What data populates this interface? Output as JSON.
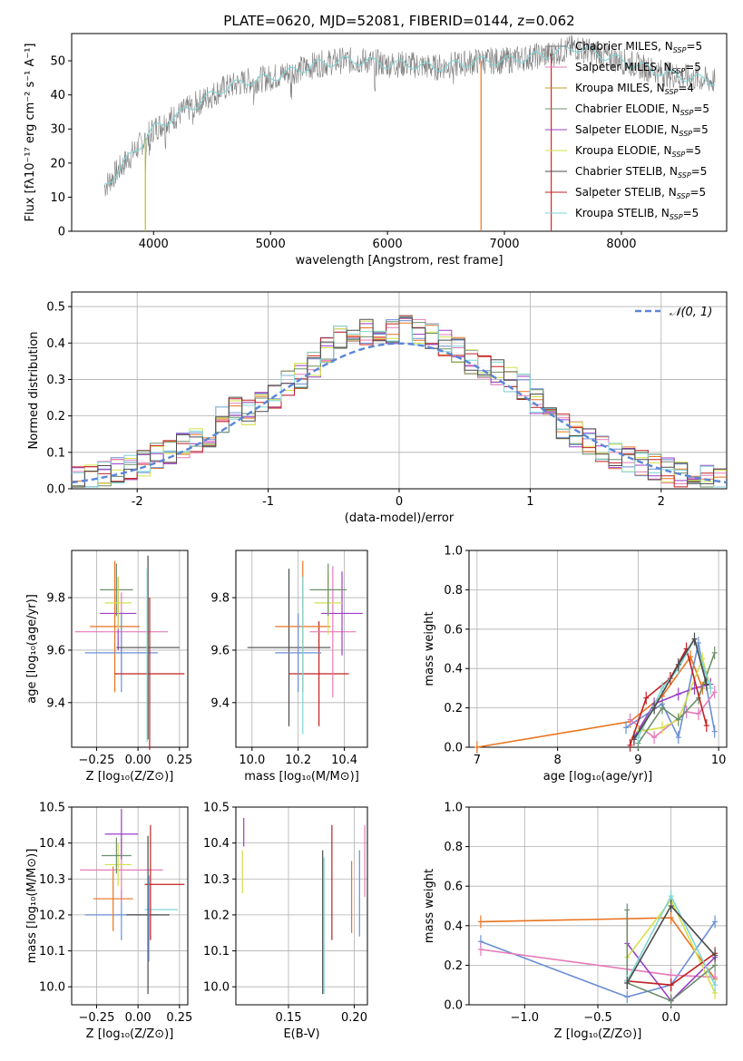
{
  "figure_title": "PLATE=0620, MJD=52081, FIBERID=0144, z=0.062",
  "colors": {
    "chabrier_miles": "#1f1f1f",
    "salpeter_miles": "#e377c2",
    "kroupa_miles": "#bcbd22",
    "chabrier_elodie": "#2ca02c",
    "salpeter_elodie": "#9467bd",
    "kroupa_elodie": "#dbdb8d",
    "chabrier_stelib": "#555555",
    "salpeter_stelib": "#d62728",
    "kroupa_stelib": "#17becf",
    "panel_miles_chab": "#777777",
    "orange": "#e8741f",
    "blue": "#6b8fd6",
    "pink": "#e67ab8",
    "purple": "#9b3fc8",
    "yellowgreen": "#d4e04a",
    "green": "#6c8f6c",
    "red": "#c22020",
    "cyan": "#7fd6d6",
    "dark": "#4a4a4a",
    "grid": "#b0b0b0",
    "normal_curve": "#5b86d6"
  },
  "chart_data": [
    {
      "id": "spectrum",
      "type": "line",
      "xlabel": "wavelength [Angstrom, rest frame]",
      "ylabel": "Flux [fλ10⁻¹⁷ erg cm⁻² s⁻¹ A⁻¹]",
      "xlim": [
        3300,
        8900
      ],
      "ylim": [
        0,
        58
      ],
      "xticks": [
        4000,
        5000,
        6000,
        7000,
        8000
      ],
      "yticks": [
        0,
        10,
        20,
        30,
        40,
        50
      ],
      "grid": false,
      "legend_position": "lower-right",
      "legend": [
        {
          "label": "Chabrier MILES, N",
          "sub": "SSP",
          "tail": "=5"
        },
        {
          "label": "Salpeter MILES, N",
          "sub": "SSP",
          "tail": "=5"
        },
        {
          "label": "Kroupa MILES, N",
          "sub": "SSP",
          "tail": "=4"
        },
        {
          "label": "Chabrier ELODIE, N",
          "sub": "SSP",
          "tail": "=5"
        },
        {
          "label": "Salpeter ELODIE, N",
          "sub": "SSP",
          "tail": "=5"
        },
        {
          "label": "Kroupa ELODIE, N",
          "sub": "SSP",
          "tail": "=5"
        },
        {
          "label": "Chabrier STELIB, N",
          "sub": "SSP",
          "tail": "=5"
        },
        {
          "label": "Salpeter STELIB, N",
          "sub": "SSP",
          "tail": "=5"
        },
        {
          "label": "Kroupa STELIB, N",
          "sub": "SSP",
          "tail": "=5"
        }
      ],
      "continuum": {
        "x": [
          3580,
          3700,
          3900,
          4000,
          4200,
          4400,
          4600,
          4800,
          5000,
          5200,
          5400,
          5600,
          5800,
          6000,
          6200,
          6400,
          6600,
          6800,
          7000,
          7200,
          7400,
          7600,
          7800,
          8000,
          8200,
          8400,
          8600,
          8800
        ],
        "y": [
          13,
          18,
          26,
          30,
          34,
          38,
          42,
          44,
          45,
          47,
          49,
          50,
          50,
          49,
          49,
          48,
          49,
          50,
          50,
          51,
          52,
          54,
          52,
          50,
          48,
          46,
          45,
          44
        ]
      }
    },
    {
      "id": "residuals",
      "type": "histogram",
      "xlabel": "(data-model)/error",
      "ylabel": "Normed distribution",
      "xlim": [
        -2.5,
        2.5
      ],
      "ylim": [
        0,
        0.54
      ],
      "xticks": [
        -2,
        -1,
        0,
        1,
        2
      ],
      "yticks": [
        0.0,
        0.1,
        0.2,
        0.3,
        0.4,
        0.5
      ],
      "grid": true,
      "legend_position": "top-right",
      "legend": [
        {
          "label": "𝒩(0, 1)"
        }
      ],
      "bins": {
        "start": -2.5,
        "width": 0.1,
        "values": [
          0.03,
          0.03,
          0.04,
          0.05,
          0.06,
          0.07,
          0.09,
          0.1,
          0.12,
          0.13,
          0.15,
          0.19,
          0.22,
          0.21,
          0.23,
          0.25,
          0.29,
          0.31,
          0.34,
          0.38,
          0.42,
          0.44,
          0.43,
          0.42,
          0.43,
          0.44,
          0.43,
          0.42,
          0.4,
          0.38,
          0.35,
          0.33,
          0.32,
          0.3,
          0.28,
          0.24,
          0.2,
          0.17,
          0.15,
          0.13,
          0.11,
          0.09,
          0.08,
          0.07,
          0.06,
          0.05,
          0.04,
          0.04,
          0.03,
          0.02
        ]
      }
    },
    {
      "id": "age_vs_Z",
      "type": "scatter",
      "xlabel": "Z [log₁₀(Z/Z⊙)]",
      "ylabel": "age  [log₁₀(age/yr)]",
      "xlim": [
        -0.4,
        0.3
      ],
      "ylim": [
        9.23,
        9.98
      ],
      "xticks": [
        -0.25,
        0.0,
        0.25
      ],
      "xticklabels": [
        "−0.25",
        "0.00",
        "0.25"
      ],
      "yticks": [
        9.4,
        9.6,
        9.8
      ],
      "grid": true,
      "points": [
        {
          "x": -0.13,
          "xerr": 0.1,
          "y": 9.83,
          "yerr": 0.1,
          "c": "green"
        },
        {
          "x": -0.14,
          "xerr": 0.15,
          "y": 9.69,
          "yerr": 0.25,
          "c": "orange"
        },
        {
          "x": -0.1,
          "xerr": 0.28,
          "y": 9.67,
          "yerr": 0.15,
          "c": "pink"
        },
        {
          "x": -0.12,
          "xerr": 0.11,
          "y": 9.74,
          "yerr": 0.14,
          "c": "purple"
        },
        {
          "x": -0.12,
          "xerr": 0.08,
          "y": 9.78,
          "yerr": 0.1,
          "c": "yellowgreen"
        },
        {
          "x": -0.1,
          "xerr": 0.22,
          "y": 9.59,
          "yerr": 0.15,
          "c": "blue"
        },
        {
          "x": 0.07,
          "xerr": 0.21,
          "y": 9.51,
          "yerr": 0.29,
          "c": "red"
        },
        {
          "x": 0.06,
          "xerr": 0.19,
          "y": 9.61,
          "yerr": 0.35,
          "c": "dark"
        },
        {
          "x": 0.055,
          "xerr": 0.0,
          "y": 9.58,
          "yerr": 0.33,
          "c": "cyan"
        }
      ]
    },
    {
      "id": "age_vs_mass",
      "type": "scatter",
      "xlabel": "mass [log₁₀(M/M⊙)]",
      "ylabel": "",
      "xlim": [
        9.93,
        10.5
      ],
      "ylim": [
        9.23,
        9.98
      ],
      "xticks": [
        10.0,
        10.2,
        10.4
      ],
      "xticklabels": [
        "10.0",
        "10.2",
        "10.4"
      ],
      "yticks": [
        9.4,
        9.6,
        9.8
      ],
      "grid": true,
      "points": [
        {
          "x": 10.16,
          "xerr": 0.18,
          "y": 9.61,
          "yerr": 0.3,
          "c": "dark"
        },
        {
          "x": 10.29,
          "xerr": 0.13,
          "y": 9.51,
          "yerr": 0.2,
          "c": "red"
        },
        {
          "x": 10.22,
          "xerr": 0.12,
          "y": 9.69,
          "yerr": 0.25,
          "c": "orange"
        },
        {
          "x": 10.35,
          "xerr": 0.1,
          "y": 9.67,
          "yerr": 0.25,
          "c": "pink"
        },
        {
          "x": 10.39,
          "xerr": 0.09,
          "y": 9.74,
          "yerr": 0.16,
          "c": "purple"
        },
        {
          "x": 10.33,
          "xerr": 0.06,
          "y": 9.78,
          "yerr": 0.12,
          "c": "yellowgreen"
        },
        {
          "x": 10.33,
          "xerr": 0.08,
          "y": 9.83,
          "yerr": 0.1,
          "c": "green"
        },
        {
          "x": 10.2,
          "xerr": 0.1,
          "y": 9.59,
          "yerr": 0.15,
          "c": "blue"
        },
        {
          "x": 10.22,
          "xerr": 0.0,
          "y": 9.58,
          "yerr": 0.3,
          "c": "cyan"
        }
      ]
    },
    {
      "id": "weight_vs_age",
      "type": "line",
      "xlabel": "age  [log₁₀(age/yr)]",
      "ylabel": "mass weight",
      "xlim": [
        6.9,
        10.1
      ],
      "ylim": [
        0,
        1.0
      ],
      "xticks": [
        7,
        8,
        9,
        10
      ],
      "yticks": [
        0.0,
        0.2,
        0.4,
        0.6,
        0.8,
        1.0
      ],
      "grid": true,
      "series": [
        {
          "c": "orange",
          "x": [
            7.0,
            8.9,
            9.3,
            9.65,
            9.8
          ],
          "y": [
            0.0,
            0.13,
            0.26,
            0.46,
            0.3
          ]
        },
        {
          "c": "blue",
          "x": [
            8.85,
            9.3,
            9.5,
            9.75,
            9.95
          ],
          "y": [
            0.1,
            0.22,
            0.05,
            0.53,
            0.08
          ]
        },
        {
          "c": "pink",
          "x": [
            8.9,
            9.2,
            9.6,
            9.75,
            9.95
          ],
          "y": [
            0.14,
            0.05,
            0.18,
            0.17,
            0.28
          ]
        },
        {
          "c": "purple",
          "x": [
            8.95,
            9.2,
            9.5,
            9.7,
            9.9
          ],
          "y": [
            0.05,
            0.22,
            0.27,
            0.3,
            0.32
          ]
        },
        {
          "c": "yellowgreen",
          "x": [
            9.0,
            9.3,
            9.5,
            9.8,
            9.9
          ],
          "y": [
            0.08,
            0.1,
            0.14,
            0.45,
            0.3
          ]
        },
        {
          "c": "green",
          "x": [
            9.0,
            9.3,
            9.5,
            9.75,
            9.95
          ],
          "y": [
            0.02,
            0.2,
            0.14,
            0.25,
            0.48
          ]
        },
        {
          "c": "red",
          "x": [
            8.9,
            9.1,
            9.4,
            9.6,
            9.85
          ],
          "y": [
            0.01,
            0.25,
            0.35,
            0.5,
            0.11
          ]
        },
        {
          "c": "cyan",
          "x": [
            9.0,
            9.3,
            9.5,
            9.7,
            9.9
          ],
          "y": [
            0.05,
            0.3,
            0.4,
            0.55,
            0.3
          ]
        },
        {
          "c": "dark",
          "x": [
            8.95,
            9.2,
            9.5,
            9.7,
            9.85
          ],
          "y": [
            0.04,
            0.2,
            0.42,
            0.55,
            0.32
          ]
        }
      ]
    },
    {
      "id": "mass_vs_Z",
      "type": "scatter",
      "xlabel": "Z [log₁₀(Z/Z⊙)]",
      "ylabel": "mass [log₁₀(M/M⊙)]",
      "xlim": [
        -0.4,
        0.3
      ],
      "ylim": [
        9.95,
        10.5
      ],
      "xticks": [
        -0.25,
        0.0,
        0.25
      ],
      "xticklabels": [
        "−0.25",
        "0.00",
        "0.25"
      ],
      "yticks": [
        10.0,
        10.1,
        10.2,
        10.3,
        10.4,
        10.5
      ],
      "grid": true,
      "points": [
        {
          "x": -0.1,
          "xerr": 0.22,
          "y": 10.2,
          "yerr": 0.07,
          "c": "blue"
        },
        {
          "x": -0.15,
          "xerr": 0.12,
          "y": 10.245,
          "yerr": 0.09,
          "c": "orange"
        },
        {
          "x": -0.1,
          "xerr": 0.25,
          "y": 10.325,
          "yerr": 0.09,
          "c": "pink"
        },
        {
          "x": -0.1,
          "xerr": 0.1,
          "y": 10.425,
          "yerr": 0.07,
          "c": "purple"
        },
        {
          "x": -0.12,
          "xerr": 0.08,
          "y": 10.34,
          "yerr": 0.06,
          "c": "yellowgreen"
        },
        {
          "x": -0.13,
          "xerr": 0.09,
          "y": 10.365,
          "yerr": 0.05,
          "c": "green"
        },
        {
          "x": 0.16,
          "xerr": 0.12,
          "y": 10.285,
          "yerr": 0.0,
          "c": "red"
        },
        {
          "x": 0.14,
          "xerr": 0.1,
          "y": 10.215,
          "yerr": 0.0,
          "c": "cyan"
        },
        {
          "x": 0.06,
          "xerr": 0.13,
          "y": 10.2,
          "yerr": 0.22,
          "c": "dark"
        },
        {
          "x": 0.075,
          "xerr": 0.0,
          "y": 10.29,
          "yerr": 0.16,
          "c": "red"
        },
        {
          "x": 0.065,
          "xerr": 0.0,
          "y": 10.19,
          "yerr": 0.12,
          "c": "blue"
        }
      ]
    },
    {
      "id": "mass_vs_ebv",
      "type": "scatter",
      "xlabel": "E(B-V)",
      "ylabel": "",
      "xlim": [
        0.11,
        0.21
      ],
      "ylim": [
        9.95,
        10.5
      ],
      "xticks": [
        0.15,
        0.2
      ],
      "xticklabels": [
        "0.15",
        "0.20"
      ],
      "yticks": [
        10.0,
        10.1,
        10.2,
        10.3,
        10.4,
        10.5
      ],
      "grid": true,
      "points": [
        {
          "x": 0.115,
          "xerr": 0,
          "y": 10.32,
          "yerr": 0.06,
          "c": "yellowgreen"
        },
        {
          "x": 0.116,
          "xerr": 0,
          "y": 10.43,
          "yerr": 0.04,
          "c": "purple"
        },
        {
          "x": 0.176,
          "xerr": 0,
          "y": 10.18,
          "yerr": 0.2,
          "c": "dark"
        },
        {
          "x": 0.177,
          "xerr": 0,
          "y": 10.17,
          "yerr": 0.19,
          "c": "cyan"
        },
        {
          "x": 0.183,
          "xerr": 0,
          "y": 10.29,
          "yerr": 0.16,
          "c": "red"
        },
        {
          "x": 0.198,
          "xerr": 0,
          "y": 10.25,
          "yerr": 0.1,
          "c": "orange"
        },
        {
          "x": 0.204,
          "xerr": 0,
          "y": 10.26,
          "yerr": 0.12,
          "c": "blue"
        },
        {
          "x": 0.208,
          "xerr": 0,
          "y": 10.35,
          "yerr": 0.1,
          "c": "pink"
        }
      ]
    },
    {
      "id": "weight_vs_Z",
      "type": "line",
      "xlabel": "Z [log₁₀(Z/Z⊙)]",
      "ylabel": "mass weight",
      "xlim": [
        -1.38,
        0.38
      ],
      "ylim": [
        0,
        1.0
      ],
      "xticks": [
        -1.0,
        -0.5,
        0.0
      ],
      "xticklabels": [
        "−1.0",
        "−0.5",
        "0.0"
      ],
      "yticks": [
        0.0,
        0.2,
        0.4,
        0.6,
        0.8,
        1.0
      ],
      "grid": true,
      "series": [
        {
          "c": "orange",
          "x": [
            -1.3,
            0.0,
            0.3
          ],
          "y": [
            0.42,
            0.44,
            0.13
          ]
        },
        {
          "c": "blue",
          "x": [
            -1.3,
            -0.3,
            0.0,
            0.3
          ],
          "y": [
            0.32,
            0.04,
            0.1,
            0.42
          ]
        },
        {
          "c": "pink",
          "x": [
            -1.3,
            0.0,
            0.3
          ],
          "y": [
            0.28,
            0.15,
            0.14
          ]
        },
        {
          "c": "purple",
          "x": [
            -0.3,
            0.0,
            0.3
          ],
          "y": [
            0.31,
            0.02,
            0.24
          ]
        },
        {
          "c": "yellowgreen",
          "x": [
            -0.3,
            0.0,
            0.3
          ],
          "y": [
            0.24,
            0.53,
            0.06
          ]
        },
        {
          "c": "green",
          "x": [
            -0.3,
            -0.3,
            0.0,
            0.3
          ],
          "y": [
            0.48,
            0.11,
            0.02,
            0.2
          ]
        },
        {
          "c": "red",
          "x": [
            -0.3,
            0.0,
            0.3
          ],
          "y": [
            0.12,
            0.1,
            0.26
          ]
        },
        {
          "c": "cyan",
          "x": [
            -0.3,
            0.0,
            0.3
          ],
          "y": [
            0.12,
            0.55,
            0.1
          ]
        },
        {
          "c": "dark",
          "x": [
            -0.3,
            0.0,
            0.3
          ],
          "y": [
            0.11,
            0.5,
            0.25
          ]
        }
      ]
    }
  ]
}
